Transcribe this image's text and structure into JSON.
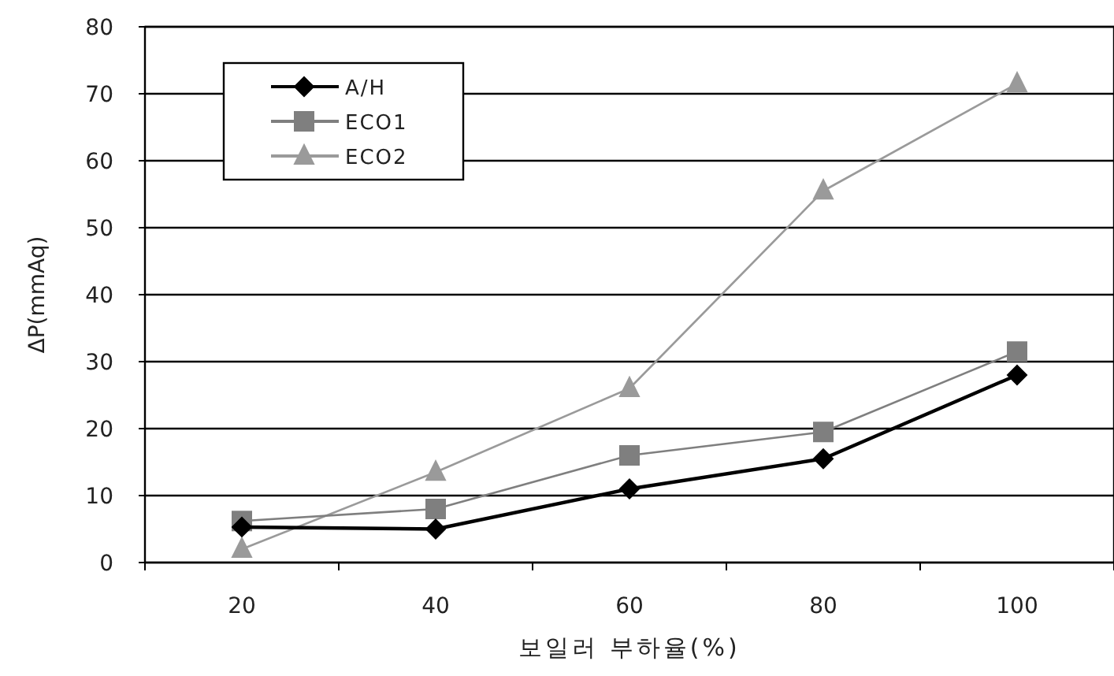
{
  "chart_data": {
    "type": "line",
    "xlabel": "보일러 부하율(%)",
    "ylabel": "ΔP(mmAq)",
    "categories": [
      "20",
      "40",
      "60",
      "80",
      "100"
    ],
    "series": [
      {
        "name": "A/H",
        "color": "#000000",
        "marker": "diamond",
        "values": [
          5.3,
          5,
          11,
          15.5,
          28
        ]
      },
      {
        "name": "ECO1",
        "color": "#7f7f7f",
        "marker": "square",
        "values": [
          6.2,
          8,
          16,
          19.5,
          31.5
        ]
      },
      {
        "name": "ECO2",
        "color": "#9a9a9a",
        "marker": "triangle",
        "values": [
          2,
          13.5,
          26,
          55.5,
          71.5
        ]
      }
    ],
    "ylim": [
      0,
      80
    ],
    "yticks": [
      0,
      10,
      20,
      30,
      40,
      50,
      60,
      70,
      80
    ],
    "grid": "y",
    "legend": "top left",
    "line_style": "solid"
  }
}
